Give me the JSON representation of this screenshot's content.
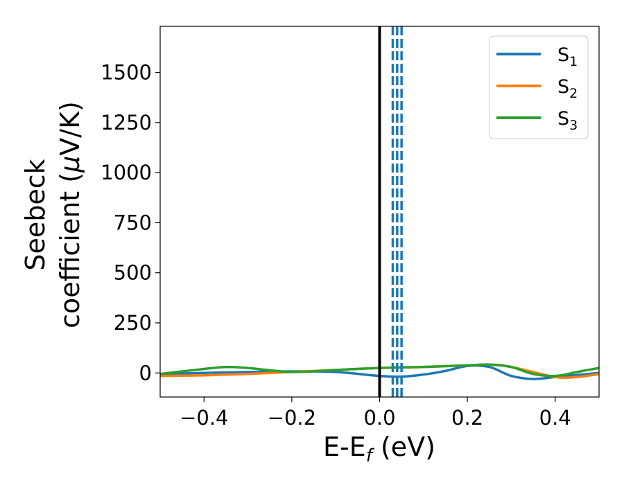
{
  "chart_data": {
    "type": "line",
    "xlabel": {
      "main": "E-E",
      "sub": "f",
      "rest": " (eV)"
    },
    "ylabel": {
      "line1": "Seebeck",
      "line2_prefix": "coefficient  (",
      "mu": "μ",
      "line2_suffix": "V/K)"
    },
    "xlim": [
      -0.5,
      0.5
    ],
    "ylim": [
      -120,
      1730
    ],
    "xticks": [
      -0.4,
      -0.2,
      0.0,
      0.2,
      0.4
    ],
    "xtick_labels": [
      "−0.4",
      "−0.2",
      "0.0",
      "0.2",
      "0.4"
    ],
    "yticks": [
      0,
      250,
      500,
      750,
      1000,
      1250,
      1500
    ],
    "ytick_labels": [
      "0",
      "250",
      "500",
      "750",
      "1000",
      "1250",
      "1500"
    ],
    "grid": false,
    "legend_position": "top-right",
    "reference_lines": [
      {
        "x": 0.0,
        "color": "#000000",
        "style": "solid"
      },
      {
        "x": 0.03,
        "color": "#1f77b4",
        "style": "dashed"
      },
      {
        "x": 0.04,
        "color": "#1f77b4",
        "style": "dashed"
      },
      {
        "x": 0.05,
        "color": "#1f77b4",
        "style": "dashed"
      }
    ],
    "series": [
      {
        "name": "S",
        "sub": "1",
        "color": "#1f77b4",
        "x": [
          -0.5,
          -0.4,
          -0.3,
          -0.2,
          -0.1,
          0.0,
          0.05,
          0.1,
          0.15,
          0.2,
          0.25,
          0.3,
          0.35,
          0.4,
          0.45,
          0.5
        ],
        "y": [
          -5,
          0,
          5,
          8,
          5,
          -15,
          -18,
          -8,
          10,
          35,
          30,
          -15,
          -30,
          -20,
          -10,
          0
        ]
      },
      {
        "name": "S",
        "sub": "2",
        "color": "#ff7f0e",
        "x": [
          -0.5,
          -0.4,
          -0.3,
          -0.2,
          -0.1,
          0.0,
          0.1,
          0.2,
          0.25,
          0.3,
          0.4,
          0.45,
          0.5
        ],
        "y": [
          -15,
          -12,
          -5,
          5,
          15,
          25,
          30,
          38,
          42,
          30,
          -20,
          -20,
          -5
        ]
      },
      {
        "name": "S",
        "sub": "3",
        "color": "#2ca02c",
        "x": [
          -0.5,
          -0.4,
          -0.35,
          -0.3,
          -0.2,
          -0.1,
          0.0,
          0.1,
          0.2,
          0.25,
          0.3,
          0.35,
          0.4,
          0.45,
          0.5
        ],
        "y": [
          -5,
          20,
          30,
          25,
          5,
          15,
          25,
          30,
          38,
          42,
          30,
          -5,
          -15,
          5,
          25
        ]
      }
    ]
  }
}
